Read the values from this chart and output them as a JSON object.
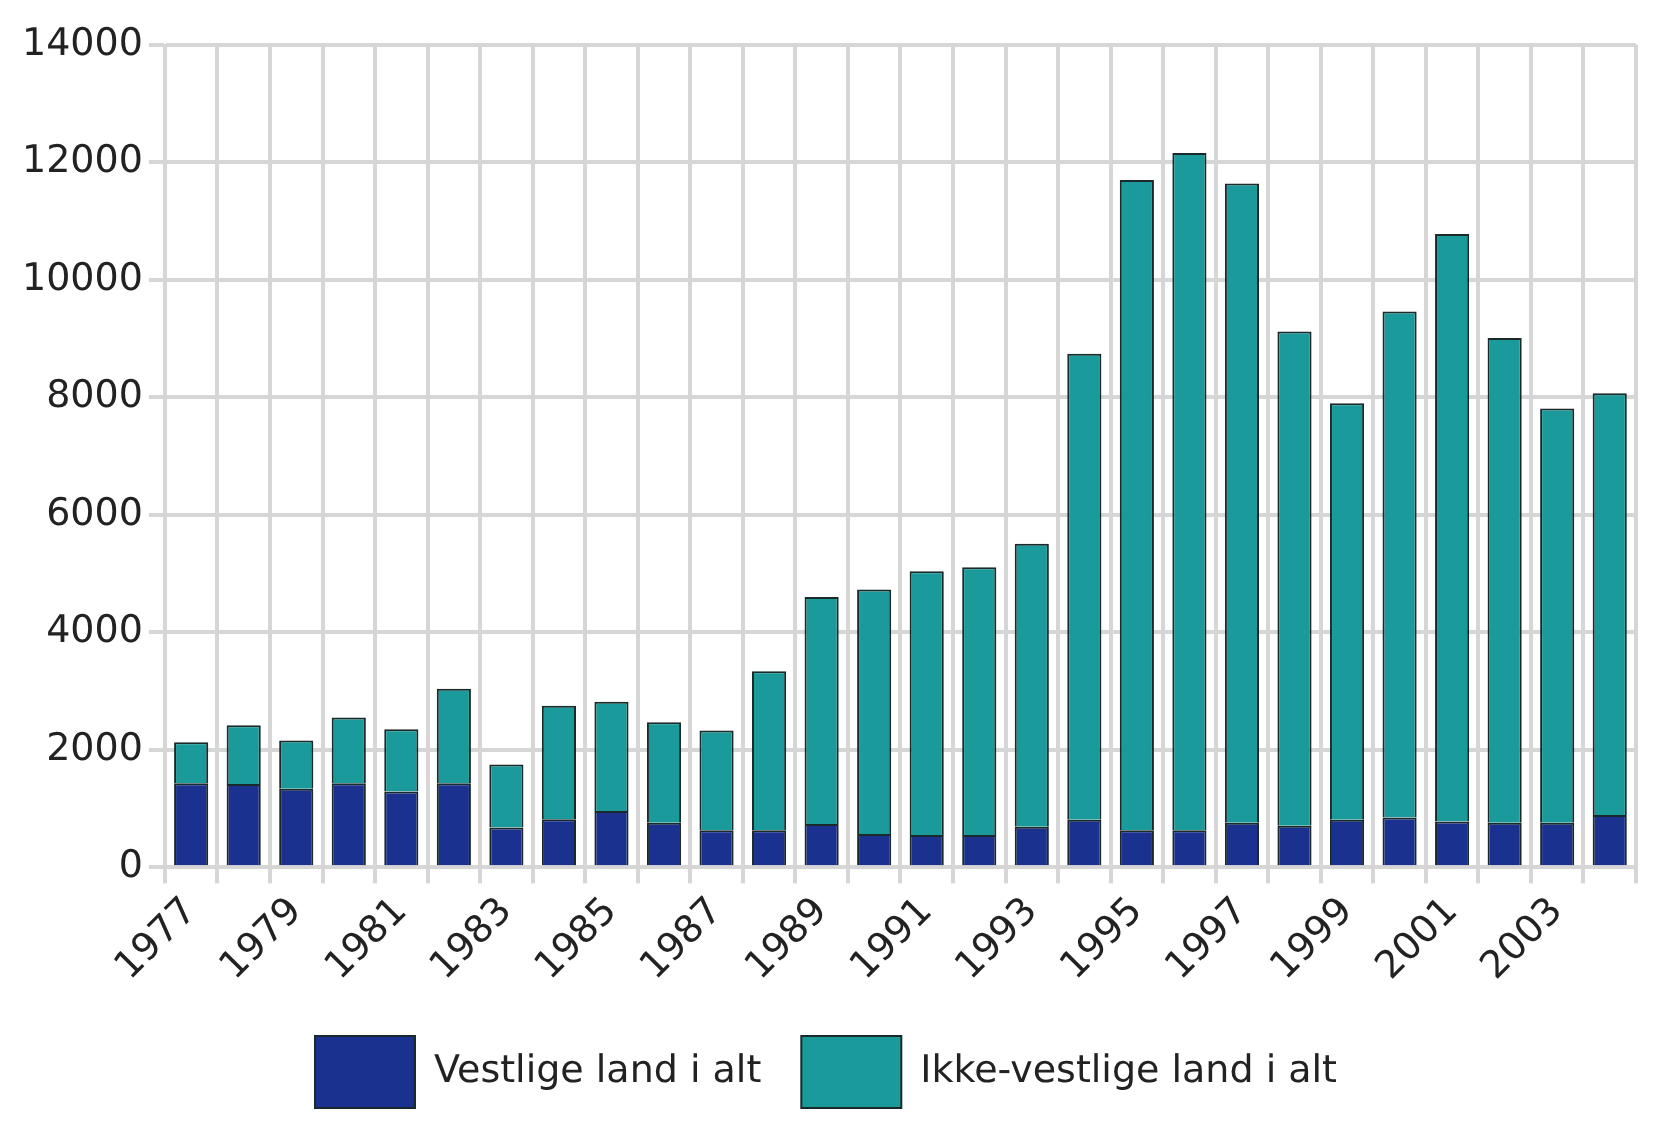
{
  "chart_data": {
    "type": "bar",
    "stacked": true,
    "categories": [
      "1977",
      null,
      "1979",
      null,
      "1981",
      null,
      "1983",
      null,
      "1985",
      null,
      "1987",
      null,
      "1989",
      null,
      "1991",
      null,
      "1993",
      null,
      "1995",
      null,
      "1997",
      null,
      "1999",
      null,
      "2001",
      null,
      "2003",
      null
    ],
    "series": [
      {
        "name": "Vestlige land i alt",
        "color": "#1a318f",
        "values": [
          1430,
          1420,
          1340,
          1430,
          1290,
          1430,
          680,
          820,
          960,
          760,
          630,
          630,
          740,
          570,
          550,
          550,
          690,
          810,
          630,
          630,
          760,
          710,
          810,
          850,
          780,
          760,
          760,
          890
        ]
      },
      {
        "name": "Ikke-vestlige land i alt",
        "color": "#1a9a9a",
        "values": [
          700,
          1000,
          820,
          1120,
          1060,
          1610,
          1070,
          1930,
          1860,
          1710,
          1700,
          2710,
          3860,
          4160,
          4490,
          4560,
          4820,
          7930,
          11070,
          11530,
          10880,
          8410,
          7090,
          8610,
          10000,
          8250,
          7050,
          7180
        ]
      }
    ],
    "ylim": [
      0,
      14000
    ],
    "yticks": [
      0,
      2000,
      4000,
      6000,
      8000,
      10000,
      12000,
      14000
    ],
    "grid": true,
    "legend": "bottom"
  }
}
